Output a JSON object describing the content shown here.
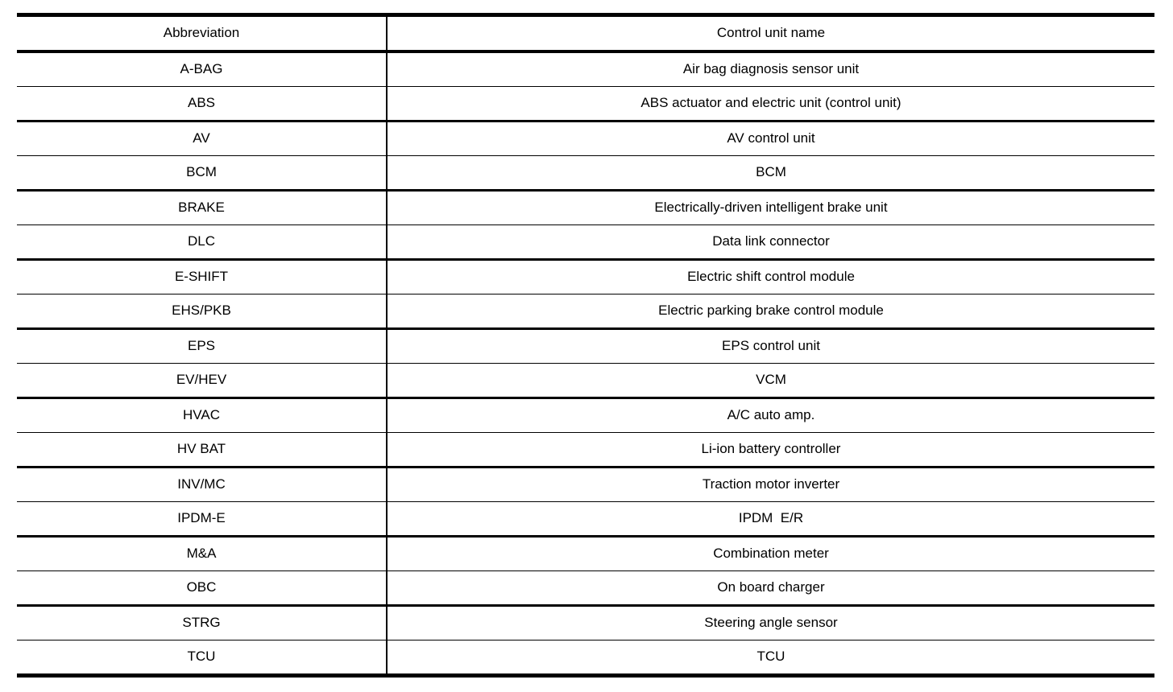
{
  "table": {
    "columns": [
      {
        "label": "Abbreviation"
      },
      {
        "label": "Control unit name"
      }
    ],
    "rows": [
      {
        "abbr": "A-BAG",
        "name": "Air bag diagnosis sensor unit"
      },
      {
        "abbr": "ABS",
        "name": "ABS actuator and electric unit (control unit)"
      },
      {
        "abbr": "AV",
        "name": "AV control unit"
      },
      {
        "abbr": "BCM",
        "name": "BCM"
      },
      {
        "abbr": "BRAKE",
        "name": "Electrically-driven intelligent brake unit"
      },
      {
        "abbr": "DLC",
        "name": "Data link connector"
      },
      {
        "abbr": "E-SHIFT",
        "name": "Electric shift control module"
      },
      {
        "abbr": "EHS/PKB",
        "name": "Electric parking brake control module"
      },
      {
        "abbr": "EPS",
        "name": "EPS control unit"
      },
      {
        "abbr": "EV/HEV",
        "name": "VCM"
      },
      {
        "abbr": "HVAC",
        "name": "A/C auto amp."
      },
      {
        "abbr": "HV BAT",
        "name": "Li-ion battery controller"
      },
      {
        "abbr": "INV/MC",
        "name": "Traction motor inverter"
      },
      {
        "abbr": "IPDM-E",
        "name": "IPDM  E/R"
      },
      {
        "abbr": "M&A",
        "name": "Combination meter"
      },
      {
        "abbr": "OBC",
        "name": "On board charger"
      },
      {
        "abbr": "STRG",
        "name": "Steering angle sensor"
      },
      {
        "abbr": "TCU",
        "name": "TCU"
      }
    ],
    "colors": {
      "border": "#000000",
      "background": "#ffffff",
      "text": "#000000"
    }
  }
}
